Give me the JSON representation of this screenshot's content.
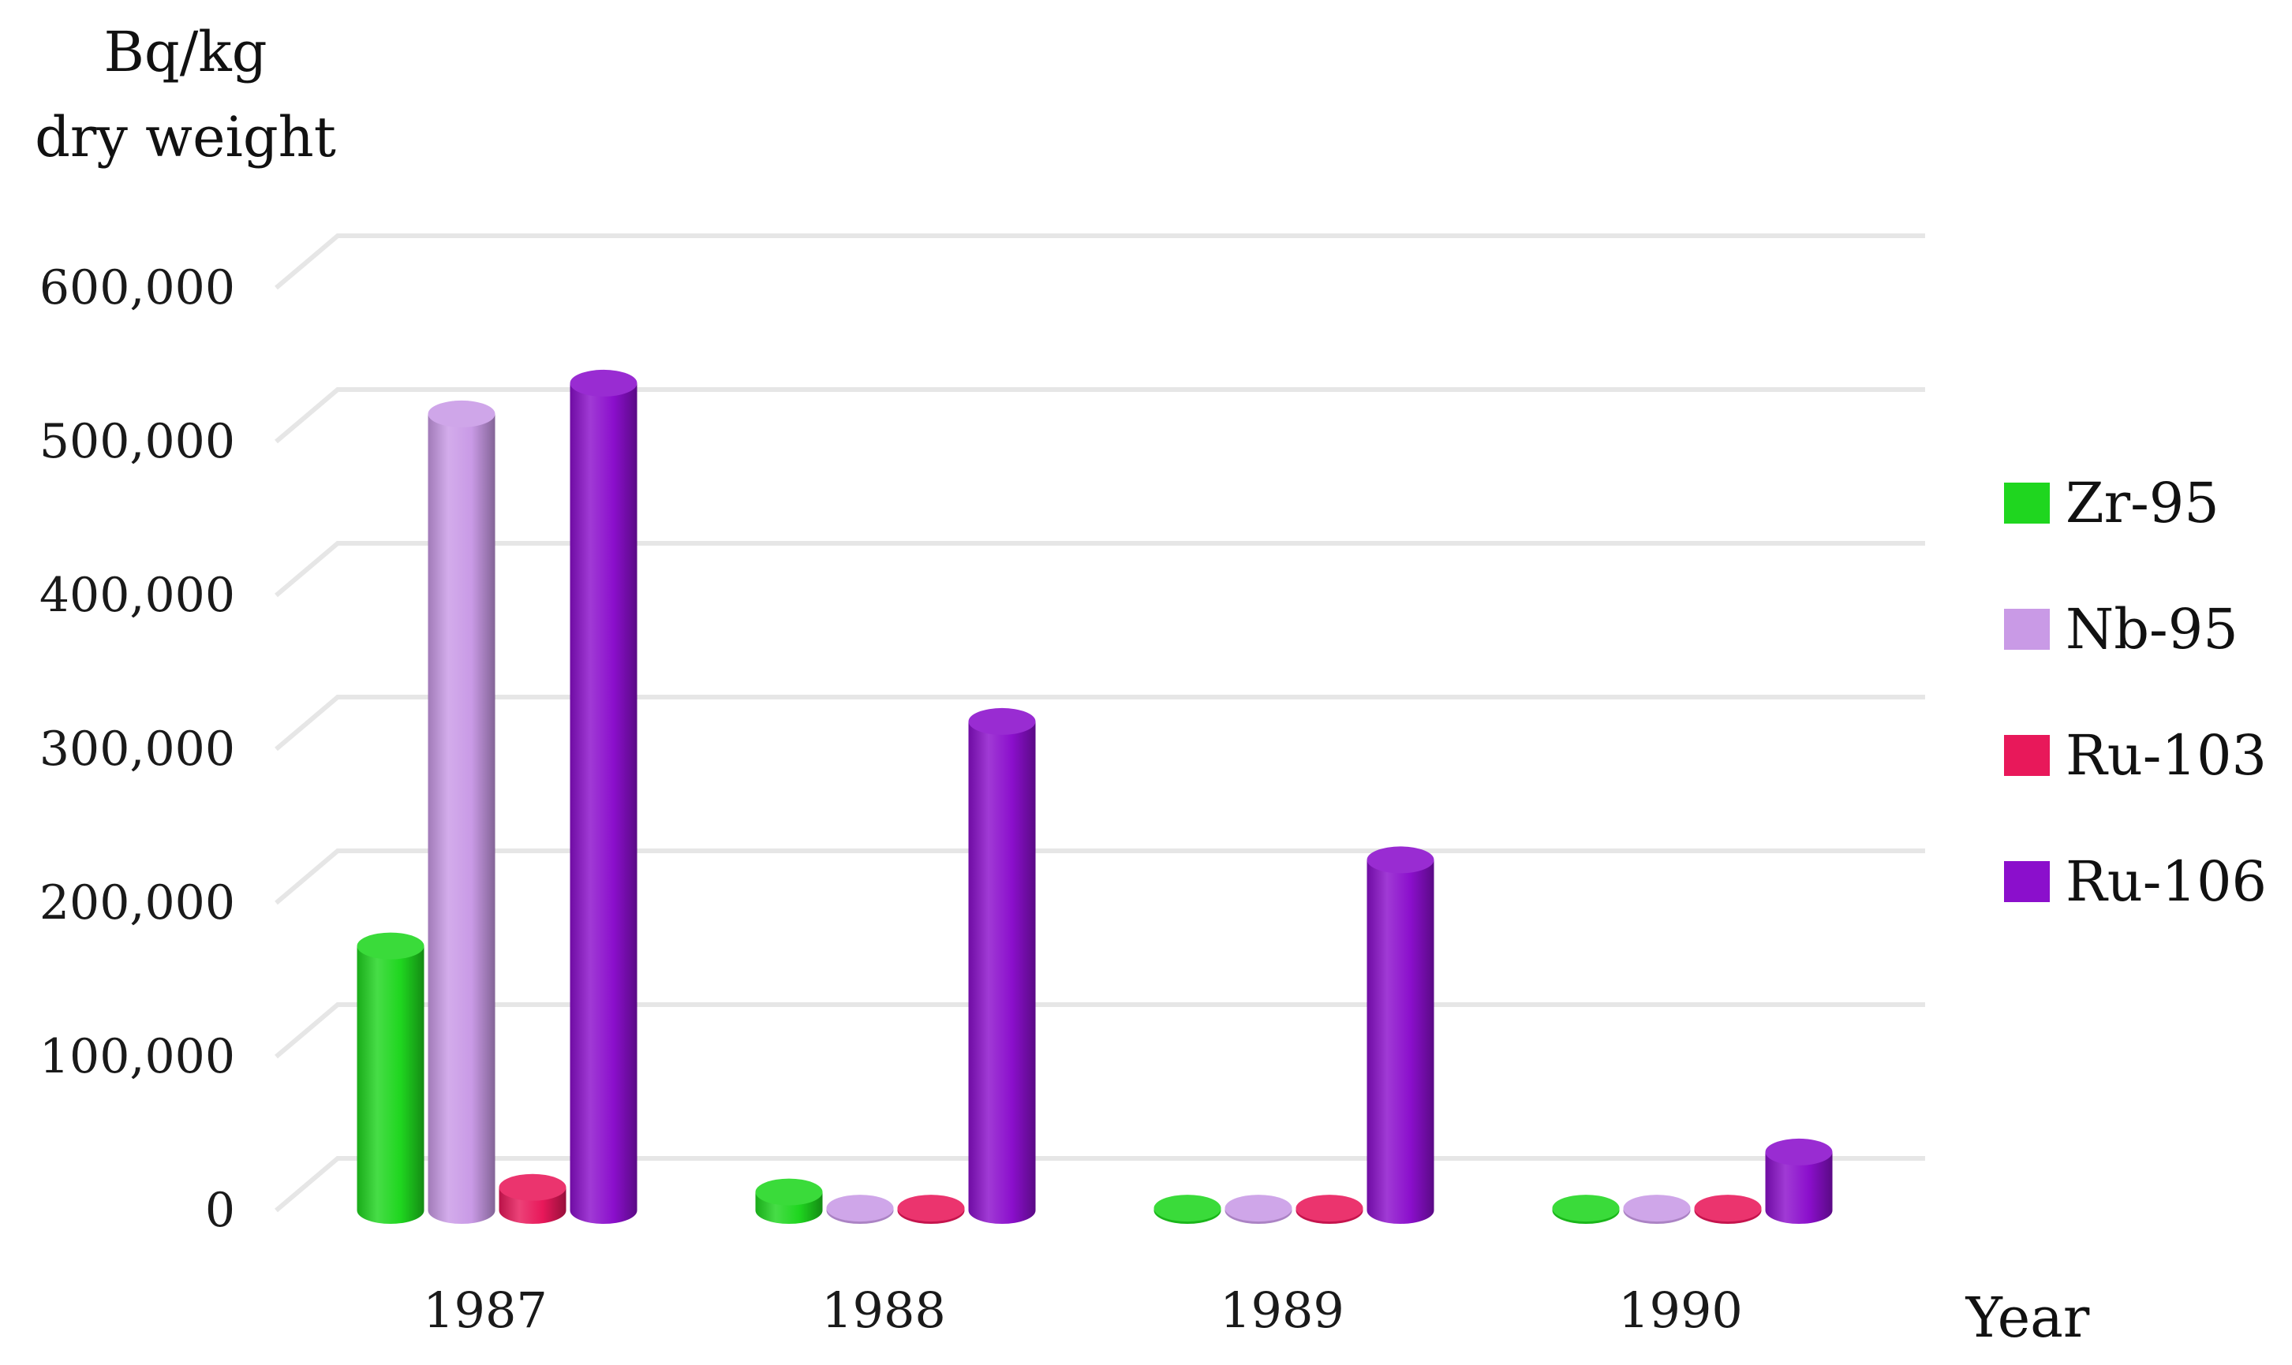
{
  "chart_data": {
    "type": "bar",
    "title": "",
    "ylabel_lines": [
      "Bq/kg",
      "dry weight"
    ],
    "xlabel": "Year",
    "categories": [
      "1987",
      "1988",
      "1989",
      "1990"
    ],
    "ylim": [
      0,
      600000
    ],
    "yticks": [
      0,
      100000,
      200000,
      300000,
      400000,
      500000,
      600000
    ],
    "ytick_labels": [
      "0",
      "100,000",
      "200,000",
      "300,000",
      "400,000",
      "500,000",
      "600,000"
    ],
    "grid": true,
    "legend_position": "right",
    "style": "3d-cylinder",
    "series": [
      {
        "name": "Zr-95",
        "color": "#1fd61f",
        "values": [
          172000,
          12000,
          1500,
          1500
        ]
      },
      {
        "name": "Nb-95",
        "color": "#c99ae6",
        "values": [
          518000,
          1500,
          1500,
          1500
        ]
      },
      {
        "name": "Ru-103",
        "color": "#e8185a",
        "values": [
          15000,
          1500,
          1500,
          1500
        ]
      },
      {
        "name": "Ru-106",
        "color": "#8b0fcc",
        "values": [
          538000,
          318000,
          228000,
          38000
        ]
      }
    ]
  }
}
